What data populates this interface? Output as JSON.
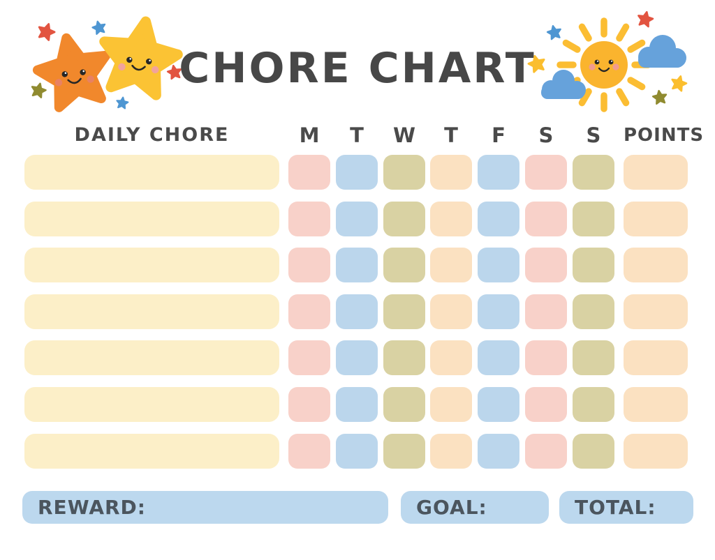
{
  "page": {
    "title": "CHORE CHART"
  },
  "table": {
    "chore_column_header": "DAILY CHORE",
    "day_headers": [
      "M",
      "T",
      "W",
      "T",
      "F",
      "S",
      "S"
    ],
    "points_header": "POINTS",
    "row_count": 7,
    "day_cell_colors": [
      "pink",
      "blue",
      "olive",
      "peach",
      "blue",
      "pink",
      "olive"
    ],
    "points_cell_color": "peach",
    "chore_bar_color": "cream"
  },
  "footer": {
    "reward_label": "REWARD:",
    "goal_label": "GOAL:",
    "total_label": "TOTAL:",
    "box_color": "#BCD8EE"
  },
  "colors": {
    "text_dark": "#474747",
    "footer_text": "#4B555E",
    "cream": "#FCEFC8",
    "pink": "#F8D1C9",
    "blue": "#BBD6EC",
    "olive": "#D9D2A3",
    "peach": "#FBE1C1"
  },
  "decorations": {
    "left_illustration": "two-smiling-stars",
    "right_illustration": "smiling-sun-with-clouds",
    "star_orange": "#F1882C",
    "star_yellow": "#FBC334",
    "sun_yellow": "#FAB42E",
    "ray_yellow": "#FBBD33",
    "cloud_blue": "#66A2DB",
    "sparkle_red": "#E25440",
    "sparkle_blue": "#4E96D2",
    "sparkle_olive": "#908B30",
    "sparkle_yellow": "#FBBE2E",
    "cheek_orange_star": "#E88163",
    "cheek_yellow_star": "#F2A39C",
    "cheek_sun": "#F29B8E",
    "face_dark": "#262626"
  }
}
